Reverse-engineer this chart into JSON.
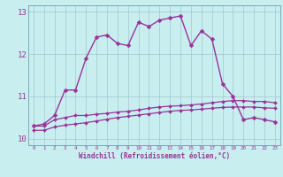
{
  "xlabel": "Windchill (Refroidissement éolien,°C)",
  "background_color": "#c8eef0",
  "grid_color": "#a0c8d0",
  "line_color": "#993399",
  "xlim": [
    -0.5,
    23.5
  ],
  "ylim": [
    9.85,
    13.15
  ],
  "xticks": [
    0,
    1,
    2,
    3,
    4,
    5,
    6,
    7,
    8,
    9,
    10,
    11,
    12,
    13,
    14,
    15,
    16,
    17,
    18,
    19,
    20,
    21,
    22,
    23
  ],
  "yticks": [
    10,
    11,
    12,
    13
  ],
  "series": [
    {
      "x": [
        0,
        1,
        2,
        3,
        4,
        5,
        6,
        7,
        8,
        9,
        10,
        11,
        12,
        13,
        14,
        15,
        16,
        17,
        18,
        19,
        20,
        21,
        22,
        23
      ],
      "y": [
        10.3,
        10.35,
        10.55,
        11.15,
        11.15,
        11.9,
        12.4,
        12.45,
        12.25,
        12.2,
        12.75,
        12.65,
        12.8,
        12.85,
        12.9,
        12.2,
        12.55,
        12.35,
        11.3,
        11.0,
        10.45,
        10.5,
        10.45,
        10.4
      ],
      "markersize": 2.5,
      "linewidth": 1.0
    },
    {
      "x": [
        0,
        1,
        2,
        3,
        4,
        5,
        6,
        7,
        8,
        9,
        10,
        11,
        12,
        13,
        14,
        15,
        16,
        17,
        18,
        19,
        20,
        21,
        22,
        23
      ],
      "y": [
        10.3,
        10.3,
        10.45,
        10.5,
        10.55,
        10.55,
        10.58,
        10.6,
        10.63,
        10.65,
        10.68,
        10.72,
        10.75,
        10.77,
        10.78,
        10.8,
        10.82,
        10.85,
        10.88,
        10.9,
        10.9,
        10.88,
        10.88,
        10.85
      ],
      "markersize": 2.0,
      "linewidth": 0.9
    },
    {
      "x": [
        0,
        1,
        2,
        3,
        4,
        5,
        6,
        7,
        8,
        9,
        10,
        11,
        12,
        13,
        14,
        15,
        16,
        17,
        18,
        19,
        20,
        21,
        22,
        23
      ],
      "y": [
        10.2,
        10.2,
        10.28,
        10.32,
        10.35,
        10.38,
        10.42,
        10.46,
        10.5,
        10.53,
        10.56,
        10.59,
        10.62,
        10.65,
        10.67,
        10.68,
        10.7,
        10.72,
        10.74,
        10.75,
        10.75,
        10.75,
        10.73,
        10.72
      ],
      "markersize": 2.0,
      "linewidth": 0.9
    }
  ]
}
